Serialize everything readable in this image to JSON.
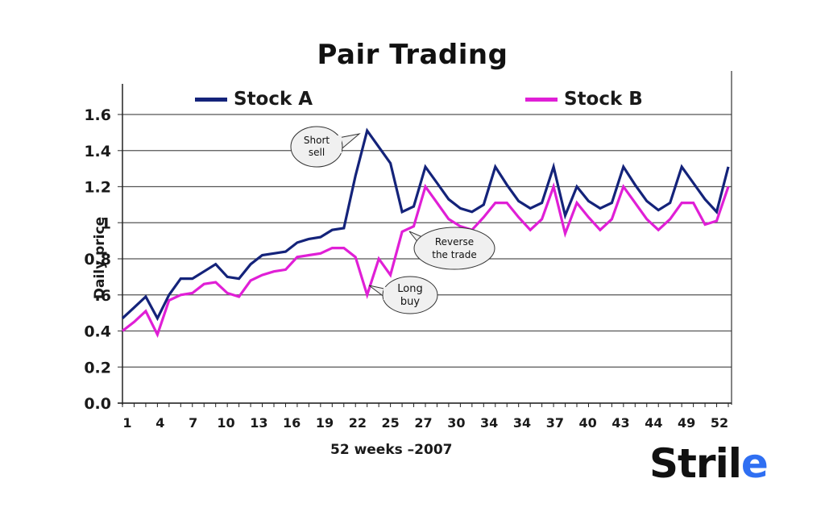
{
  "chart_data": {
    "type": "line",
    "title": "Pair Trading",
    "xlabel": "52 weeks –2007",
    "ylabel": "Daily price",
    "ylim": [
      0.0,
      1.6
    ],
    "yticks": [
      "0.0",
      "0.2",
      "0.4",
      ".6",
      "0.8",
      "1",
      "1.2",
      "1.4",
      "1.6"
    ],
    "xtick_labels": [
      "1",
      "4",
      "7",
      "10",
      "13",
      "16",
      "19",
      "22",
      "25",
      "27",
      "30",
      "34",
      "34",
      "37",
      "40",
      "43",
      "44",
      "49",
      "52"
    ],
    "grid": true,
    "legend_position": "top",
    "x": [
      1,
      2,
      3,
      4,
      5,
      6,
      7,
      8,
      9,
      10,
      11,
      12,
      13,
      14,
      15,
      16,
      17,
      18,
      19,
      20,
      21,
      22,
      23,
      24,
      25,
      26,
      27,
      28,
      29,
      30,
      31,
      32,
      33,
      34,
      35,
      36,
      37,
      38,
      39,
      40,
      41,
      42,
      43,
      44,
      45,
      46,
      47,
      48,
      49,
      50,
      51,
      52,
      53
    ],
    "series": [
      {
        "name": "Stock A",
        "color": "#14237a",
        "values": [
          0.47,
          0.53,
          0.59,
          0.47,
          0.6,
          0.69,
          0.69,
          0.73,
          0.77,
          0.7,
          0.69,
          0.77,
          0.82,
          0.83,
          0.84,
          0.89,
          0.91,
          0.92,
          0.96,
          0.97,
          1.26,
          1.51,
          1.42,
          1.33,
          1.06,
          1.09,
          1.31,
          1.22,
          1.13,
          1.08,
          1.06,
          1.1,
          1.31,
          1.21,
          1.12,
          1.08,
          1.11,
          1.31,
          1.04,
          1.2,
          1.12,
          1.08,
          1.11,
          1.31,
          1.21,
          1.12,
          1.07,
          1.11,
          1.31,
          1.22,
          1.13,
          1.06,
          1.31
        ]
      },
      {
        "name": "Stock B",
        "color": "#e01fd6",
        "values": [
          0.4,
          0.45,
          0.51,
          0.38,
          0.57,
          0.6,
          0.61,
          0.66,
          0.67,
          0.61,
          0.59,
          0.68,
          0.71,
          0.73,
          0.74,
          0.81,
          0.82,
          0.83,
          0.86,
          0.86,
          0.81,
          0.6,
          0.8,
          0.71,
          0.95,
          0.98,
          1.2,
          1.11,
          1.02,
          0.98,
          0.96,
          1.03,
          1.11,
          1.11,
          1.03,
          0.96,
          1.02,
          1.2,
          0.94,
          1.11,
          1.03,
          0.96,
          1.02,
          1.2,
          1.11,
          1.02,
          0.96,
          1.02,
          1.11,
          1.11,
          0.99,
          1.01,
          1.2
        ]
      }
    ],
    "annotations": [
      {
        "text": "Short sell",
        "x": 22,
        "series": "Stock A"
      },
      {
        "text": "Long buy",
        "x": 22,
        "series": "Stock B"
      },
      {
        "text": "Reverse the trade",
        "x": 26,
        "series": "Stock B"
      }
    ]
  },
  "header": {
    "title": "Pair Trading"
  },
  "legend": {
    "a": "Stock A",
    "b": "Stock B"
  },
  "axes": {
    "ylabel": "Daily price",
    "xlabel": "52 weeks –2007"
  },
  "callouts": {
    "short_l1": "Short",
    "short_l2": "sell",
    "long_l1": "Long",
    "long_l2": "buy",
    "rev_l1": "Reverse",
    "rev_l2": "the trade"
  },
  "logo": {
    "main": "Stril",
    "accent": "e"
  }
}
